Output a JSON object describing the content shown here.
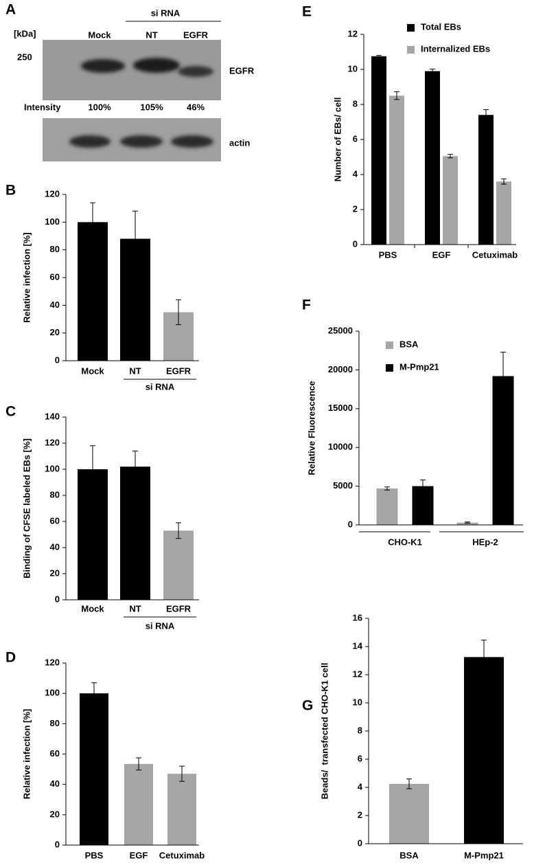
{
  "blot": {
    "panel": "A",
    "unit": "[kDa]",
    "marker": "250",
    "group_label": "si RNA",
    "lanes": [
      "Mock",
      "NT",
      "EGFR"
    ],
    "protein": "EGFR",
    "intensity_label": "Intensity",
    "intensities": [
      "100%",
      "105%",
      "46%"
    ],
    "loading_control": "actin"
  },
  "chart_data": [
    {
      "type": "bar",
      "panel": "B",
      "ylabel": "Relative infection [%]",
      "categories": [
        "Mock",
        "NT",
        "EGFR"
      ],
      "values": [
        100,
        88,
        35
      ],
      "errors": [
        14,
        20,
        9
      ],
      "colors": [
        "#000000",
        "#000000",
        "#a6a6a6"
      ],
      "ylim": [
        0,
        120
      ],
      "yticks": [
        0,
        20,
        40,
        60,
        80,
        100,
        120
      ],
      "group_label": "si RNA"
    },
    {
      "type": "bar",
      "panel": "C",
      "ylabel": "Binding of CFSE labeled EBs [%]",
      "categories": [
        "Mock",
        "NT",
        "EGFR"
      ],
      "values": [
        100,
        102,
        53
      ],
      "errors": [
        18,
        12,
        6
      ],
      "colors": [
        "#000000",
        "#000000",
        "#a6a6a6"
      ],
      "ylim": [
        0,
        140
      ],
      "yticks": [
        0,
        20,
        40,
        60,
        80,
        100,
        120,
        140
      ],
      "group_label": "si RNA"
    },
    {
      "type": "bar",
      "panel": "D",
      "ylabel": "Relative infection [%]",
      "categories": [
        "PBS",
        "EGF",
        "Cetuximab"
      ],
      "values": [
        100,
        53.5,
        47
      ],
      "errors": [
        7,
        4,
        5
      ],
      "colors": [
        "#000000",
        "#a6a6a6",
        "#a6a6a6"
      ],
      "ylim": [
        0,
        120
      ],
      "yticks": [
        0,
        20,
        40,
        60,
        80,
        100,
        120
      ]
    },
    {
      "type": "bar",
      "panel": "E",
      "ylabel": "Number of EBs/ cell",
      "categories": [
        "PBS",
        "EGF",
        "Cetuximab"
      ],
      "series": [
        {
          "name": "Total EBs",
          "color": "#000000",
          "values": [
            10.75,
            9.9,
            7.4
          ],
          "errors": [
            0.05,
            0.12,
            0.3
          ]
        },
        {
          "name": "Internalized EBs",
          "color": "#a6a6a6",
          "values": [
            8.5,
            5.05,
            3.6
          ],
          "errors": [
            0.22,
            0.1,
            0.15
          ]
        }
      ],
      "ylim": [
        0,
        12
      ],
      "yticks": [
        0,
        2,
        4,
        6,
        8,
        10,
        12
      ]
    },
    {
      "type": "bar",
      "panel": "F",
      "ylabel": "Relative Fluorescence",
      "categories": [
        "CHO-K1",
        "HEp-2"
      ],
      "series": [
        {
          "name": "BSA",
          "color": "#a6a6a6",
          "values": [
            4700,
            300
          ],
          "errors": [
            200,
            80
          ]
        },
        {
          "name": "M-Pmp21",
          "color": "#000000",
          "values": [
            5000,
            19200
          ],
          "errors": [
            800,
            3100
          ]
        }
      ],
      "ylim": [
        0,
        25000
      ],
      "yticks": [
        0,
        5000,
        10000,
        15000,
        20000,
        25000
      ]
    },
    {
      "type": "bar",
      "panel": "G",
      "ylabel": "Beads/  transfected CHO-K1 cell",
      "categories": [
        "BSA",
        "M-Pmp21"
      ],
      "values": [
        4.25,
        13.25
      ],
      "errors": [
        0.35,
        1.2
      ],
      "colors": [
        "#a6a6a6",
        "#000000"
      ],
      "ylim": [
        0,
        16
      ],
      "yticks": [
        0,
        2,
        4,
        6,
        8,
        10,
        12,
        14,
        16
      ]
    }
  ]
}
